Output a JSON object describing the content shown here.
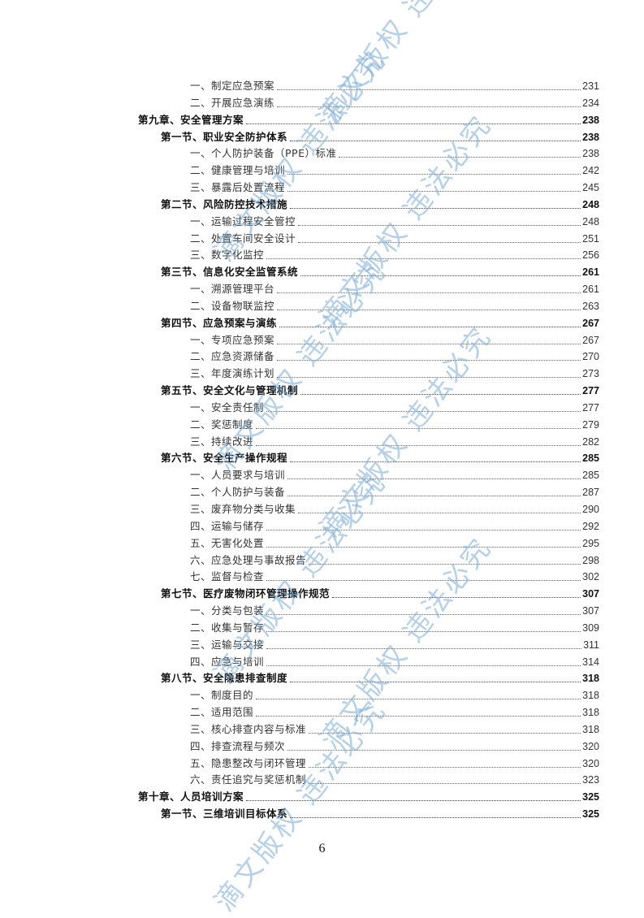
{
  "watermark": "滴文版权 违法必究",
  "page_number": "6",
  "toc": [
    {
      "level": 2,
      "title": "一、制定应急预案",
      "page": "231"
    },
    {
      "level": 2,
      "title": "二、开展应急演练",
      "page": "234"
    },
    {
      "level": 0,
      "title": "第九章、安全管理方案",
      "page": "238"
    },
    {
      "level": 1,
      "title": "第一节、职业安全防护体系",
      "page": "238"
    },
    {
      "level": 2,
      "title": "一、个人防护装备（PPE）标准",
      "page": "238"
    },
    {
      "level": 2,
      "title": "二、健康管理与培训",
      "page": "242"
    },
    {
      "level": 2,
      "title": "三、暴露后处置流程",
      "page": "245"
    },
    {
      "level": 1,
      "title": "第二节、风险防控技术措施",
      "page": "248"
    },
    {
      "level": 2,
      "title": "一、运输过程安全管控",
      "page": "248"
    },
    {
      "level": 2,
      "title": "二、处置车间安全设计",
      "page": "251"
    },
    {
      "level": 2,
      "title": "三、数字化监控",
      "page": "256"
    },
    {
      "level": 1,
      "title": "第三节、信息化安全监管系统",
      "page": "261"
    },
    {
      "level": 2,
      "title": "一、溯源管理平台",
      "page": "261"
    },
    {
      "level": 2,
      "title": "二、设备物联监控",
      "page": "263"
    },
    {
      "level": 1,
      "title": "第四节、应急预案与演练",
      "page": "267"
    },
    {
      "level": 2,
      "title": "一、专项应急预案",
      "page": "267"
    },
    {
      "level": 2,
      "title": "二、应急资源储备",
      "page": "270"
    },
    {
      "level": 2,
      "title": "三、年度演练计划",
      "page": "273"
    },
    {
      "level": 1,
      "title": "第五节、安全文化与管理机制",
      "page": "277"
    },
    {
      "level": 2,
      "title": "一、安全责任制",
      "page": "277"
    },
    {
      "level": 2,
      "title": "二、奖惩制度",
      "page": "279"
    },
    {
      "level": 2,
      "title": "三、持续改进",
      "page": "282"
    },
    {
      "level": 1,
      "title": "第六节、安全生产操作规程",
      "page": "285"
    },
    {
      "level": 2,
      "title": "一、人员要求与培训",
      "page": "285"
    },
    {
      "level": 2,
      "title": "二、个人防护与装备",
      "page": "287"
    },
    {
      "level": 2,
      "title": "三、废弃物分类与收集",
      "page": "290"
    },
    {
      "level": 2,
      "title": "四、运输与储存",
      "page": "292"
    },
    {
      "level": 2,
      "title": "五、无害化处置",
      "page": "295"
    },
    {
      "level": 2,
      "title": "六、应急处理与事故报告",
      "page": "298"
    },
    {
      "level": 2,
      "title": "七、监督与检查",
      "page": "302"
    },
    {
      "level": 1,
      "title": "第七节、医疗废物闭环管理操作规范",
      "page": "307"
    },
    {
      "level": 2,
      "title": "一、分类与包装",
      "page": "307"
    },
    {
      "level": 2,
      "title": "二、收集与暂存",
      "page": "309"
    },
    {
      "level": 2,
      "title": "三、运输与交接",
      "page": "311"
    },
    {
      "level": 2,
      "title": "四、应急与培训",
      "page": "314"
    },
    {
      "level": 1,
      "title": "第八节、安全隐患排查制度",
      "page": "318"
    },
    {
      "level": 2,
      "title": "一、制度目的",
      "page": "318"
    },
    {
      "level": 2,
      "title": "二、适用范围",
      "page": "318"
    },
    {
      "level": 2,
      "title": "三、核心排查内容与标准",
      "page": "318"
    },
    {
      "level": 2,
      "title": "四、排查流程与频次",
      "page": "320"
    },
    {
      "level": 2,
      "title": "五、隐患整改与闭环管理",
      "page": "320"
    },
    {
      "level": 2,
      "title": "六、责任追究与奖惩机制",
      "page": "323"
    },
    {
      "level": 0,
      "title": "第十章、人员培训方案",
      "page": "325"
    },
    {
      "level": 1,
      "title": "第一节、三维培训目标体系",
      "page": "325"
    }
  ]
}
